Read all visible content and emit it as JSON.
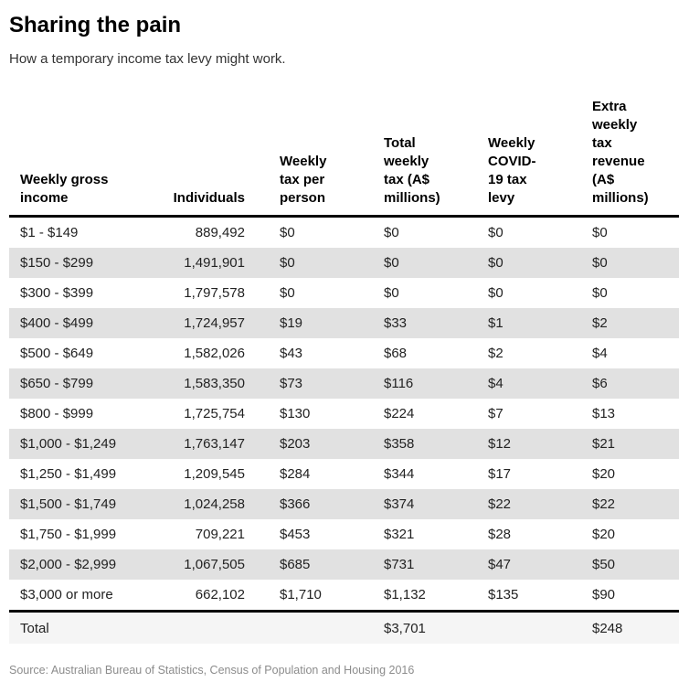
{
  "page": {
    "title": "Sharing the pain",
    "subtitle": "How a temporary income tax levy might work.",
    "source": "Source: Australian Bureau of Statistics, Census of Population and Housing 2016"
  },
  "colors": {
    "zebra_row": "#e1e1e1",
    "total_row_background": "#f5f5f5",
    "rule": "#000000",
    "source_text": "#8c8c8c"
  },
  "table": {
    "columns": [
      {
        "label": "Weekly gross\nincome"
      },
      {
        "label": "Individuals"
      },
      {
        "label": "Weekly\ntax per\nperson"
      },
      {
        "label": "Total\nweekly\ntax (A$\nmillions)"
      },
      {
        "label": "Weekly\nCOVID-\n19 tax\nlevy"
      },
      {
        "label": "Extra\nweekly\ntax\nrevenue\n(A$\nmillions)"
      }
    ],
    "cell_names": [
      "cell-income-bracket",
      "cell-individuals",
      "cell-weekly-tax-per-person",
      "cell-total-weekly-tax",
      "cell-covid-levy",
      "cell-extra-revenue"
    ],
    "rows": [
      [
        "$1 - $149",
        "889,492",
        "$0",
        "$0",
        "$0",
        "$0"
      ],
      [
        "$150 - $299",
        "1,491,901",
        "$0",
        "$0",
        "$0",
        "$0"
      ],
      [
        "$300 - $399",
        "1,797,578",
        "$0",
        "$0",
        "$0",
        "$0"
      ],
      [
        "$400 - $499",
        "1,724,957",
        "$19",
        "$33",
        "$1",
        "$2"
      ],
      [
        "$500 - $649",
        "1,582,026",
        "$43",
        "$68",
        "$2",
        "$4"
      ],
      [
        "$650 - $799",
        "1,583,350",
        "$73",
        "$116",
        "$4",
        "$6"
      ],
      [
        "$800 - $999",
        "1,725,754",
        "$130",
        "$224",
        "$7",
        "$13"
      ],
      [
        "$1,000 - $1,249",
        "1,763,147",
        "$203",
        "$358",
        "$12",
        "$21"
      ],
      [
        "$1,250 - $1,499",
        "1,209,545",
        "$284",
        "$344",
        "$17",
        "$20"
      ],
      [
        "$1,500 - $1,749",
        "1,024,258",
        "$366",
        "$374",
        "$22",
        "$22"
      ],
      [
        "$1,750 - $1,999",
        "709,221",
        "$453",
        "$321",
        "$28",
        "$20"
      ],
      [
        "$2,000 - $2,999",
        "1,067,505",
        "$685",
        "$731",
        "$47",
        "$50"
      ],
      [
        "$3,000 or more",
        "662,102",
        "$1,710",
        "$1,132",
        "$135",
        "$90"
      ]
    ],
    "total_row": {
      "label": "Total",
      "total_weekly_tax": "$3,701",
      "extra_weekly_tax_revenue": "$248"
    }
  },
  "chart_data": {
    "type": "table",
    "title": "Sharing the pain",
    "subtitle": "How a temporary income tax levy might work.",
    "columns": [
      "Weekly gross income",
      "Individuals",
      "Weekly tax per person",
      "Total weekly tax (A$ millions)",
      "Weekly COVID-19 tax levy",
      "Extra weekly tax revenue (A$ millions)"
    ],
    "rows": [
      [
        "$1 - $149",
        "889,492",
        "$0",
        "$0",
        "$0",
        "$0"
      ],
      [
        "$150 - $299",
        "1,491,901",
        "$0",
        "$0",
        "$0",
        "$0"
      ],
      [
        "$300 - $399",
        "1,797,578",
        "$0",
        "$0",
        "$0",
        "$0"
      ],
      [
        "$400 - $499",
        "1,724,957",
        "$19",
        "$33",
        "$1",
        "$2"
      ],
      [
        "$500 - $649",
        "1,582,026",
        "$43",
        "$68",
        "$2",
        "$4"
      ],
      [
        "$650 - $799",
        "1,583,350",
        "$73",
        "$116",
        "$4",
        "$6"
      ],
      [
        "$800 - $999",
        "1,725,754",
        "$130",
        "$224",
        "$7",
        "$13"
      ],
      [
        "$1,000 - $1,249",
        "1,763,147",
        "$203",
        "$358",
        "$12",
        "$21"
      ],
      [
        "$1,250 - $1,499",
        "1,209,545",
        "$284",
        "$344",
        "$17",
        "$20"
      ],
      [
        "$1,500 - $1,749",
        "1,024,258",
        "$366",
        "$374",
        "$22",
        "$22"
      ],
      [
        "$1,750 - $1,999",
        "709,221",
        "$453",
        "$321",
        "$28",
        "$20"
      ],
      [
        "$2,000 - $2,999",
        "1,067,505",
        "$685",
        "$731",
        "$47",
        "$50"
      ],
      [
        "$3,000 or more",
        "662,102",
        "$1,710",
        "$1,132",
        "$135",
        "$90"
      ]
    ],
    "total_row": [
      "Total",
      "",
      "",
      "$3,701",
      "",
      "$248"
    ],
    "source": "Source: Australian Bureau of Statistics, Census of Population and Housing 2016",
    "layout": {
      "zebra_striping": true,
      "header_rule": "thick black",
      "total_rule": "thick black"
    }
  }
}
